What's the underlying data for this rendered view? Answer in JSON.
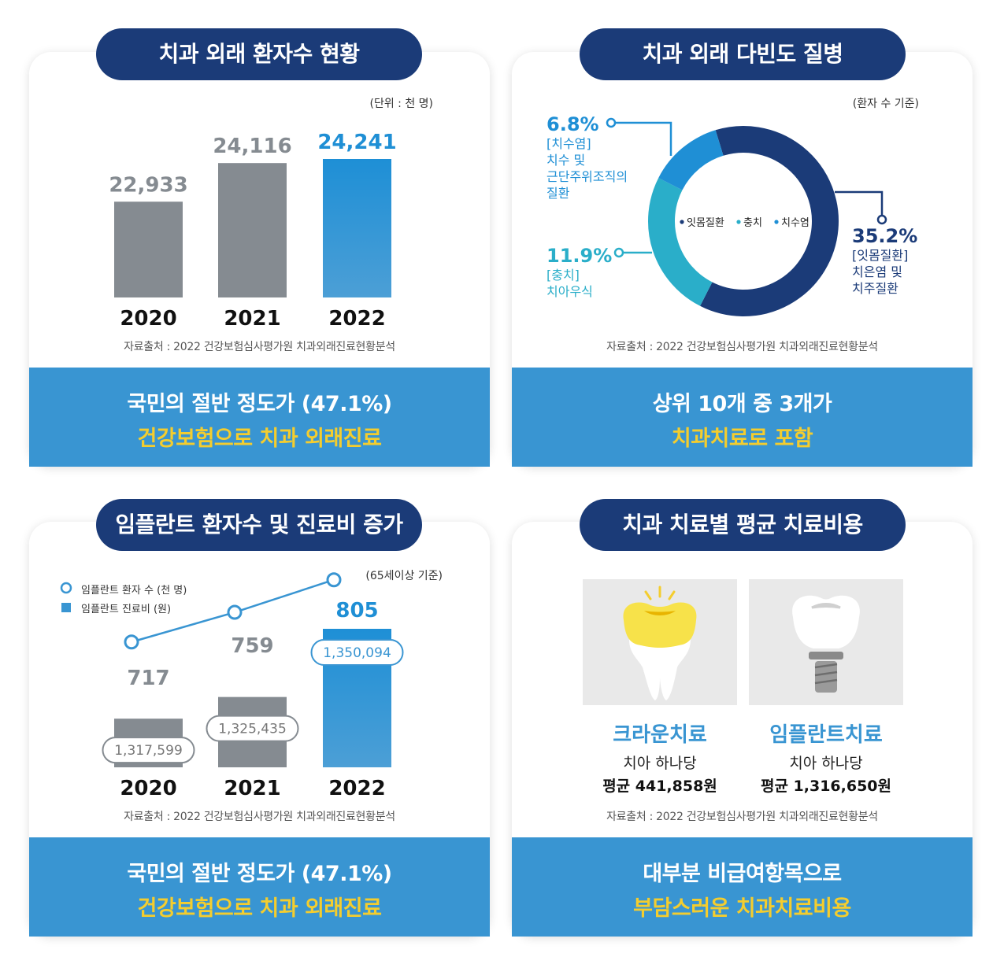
{
  "panel1": {
    "title": "치과 외래 환자수 현황",
    "unit": "(단위 : 천 명)",
    "source": "자료출처 : 2022 건강보험심사평가원 치과외래진료현황분석",
    "footer_line1": "국민의 절반 정도가 (47.1%)",
    "footer_line2": "건강보험으로 치과 외래진료"
  },
  "panel2": {
    "title": "치과 외래 다빈도 질병",
    "basis": "(환자 수 기준)",
    "center_legend": [
      "잇몸질환",
      "충치",
      "치수염"
    ],
    "labels": {
      "pulp": {
        "pct": "6.8%",
        "line1": "[치수염]",
        "line2": "치수 및",
        "line3": "근단주위조직의",
        "line4": "질환"
      },
      "caries": {
        "pct": "11.9%",
        "line1": "[충치]",
        "line2": "치아우식"
      },
      "gum": {
        "pct": "35.2%",
        "line1": "[잇몸질환]",
        "line2": "치은염 및",
        "line3": "치주질환"
      }
    },
    "source": "자료출처 : 2022 건강보험심사평가원 치과외래진료현황분석",
    "footer_line1": "상위 10개 중 3개가",
    "footer_line2": "치과치료로 포함"
  },
  "panel3": {
    "title": "임플란트 환자수 및 진료비 증가",
    "basis": "(65세이상 기준)",
    "legend_line": "임플란트 환자 수 (천 명)",
    "legend_bar": "임플란트 진료비 (원)",
    "source": "자료출처 : 2022 건강보험심사평가원 치과외래진료현황분석",
    "footer_line1": "국민의 절반 정도가 (47.1%)",
    "footer_line2": "건강보험으로 치과 외래진료"
  },
  "panel4": {
    "title": "치과 치료별 평균 치료비용",
    "crown_name": "크라운치료",
    "crown_sub": "치아 하나당",
    "crown_price": "평균 441,858원",
    "implant_name": "임플란트치료",
    "implant_sub": "치아 하나당",
    "implant_price": "평균 1,316,650원",
    "source": "자료출처 : 2022 건강보험심사평가원 치과외래진료현황분석",
    "footer_line1": "대부분 비급여항목으로",
    "footer_line2": "부담스러운 치과치료비용"
  },
  "colors": {
    "navy": "#1b3b78",
    "blue": "#3995d2",
    "yellow": "#f4cd2e",
    "gray": "#858b91",
    "teal": "#2aaec9"
  },
  "chart_data": [
    {
      "type": "bar",
      "categories": [
        "2020",
        "2021",
        "2022"
      ],
      "values": [
        22933,
        24116,
        24241
      ],
      "value_labels": [
        "22,933",
        "24,116",
        "24,241"
      ],
      "ylabel": "",
      "ylim": [
        20000,
        25000
      ]
    },
    {
      "type": "pie",
      "categories": [
        "잇몸질환",
        "충치",
        "치수염"
      ],
      "values": [
        35.2,
        11.9,
        6.8
      ],
      "labels": [
        "35.2%",
        "11.9%",
        "6.8%"
      ]
    },
    {
      "type": "bar",
      "categories": [
        "2020",
        "2021",
        "2022"
      ],
      "series": [
        {
          "name": "임플란트 환자 수 (천 명)",
          "kind": "line",
          "values": [
            717,
            759,
            805
          ],
          "labels": [
            "717",
            "759",
            "805"
          ]
        },
        {
          "name": "임플란트 진료비 (원)",
          "kind": "bar",
          "values": [
            1317599,
            1325435,
            1350094
          ],
          "labels": [
            "1,317,599",
            "1,325,435",
            "1,350,094"
          ]
        }
      ]
    }
  ]
}
